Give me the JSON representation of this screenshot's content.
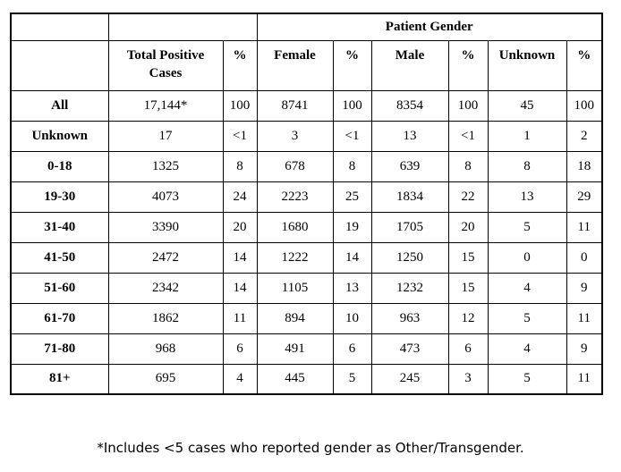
{
  "table": {
    "gender_group_label": "Patient Gender",
    "headers": {
      "row_label": "",
      "total": "Total Positive Cases",
      "total_pct": "%",
      "female": "Female",
      "female_pct": "%",
      "male": "Male",
      "male_pct": "%",
      "unknown": "Unknown",
      "unknown_pct": "%"
    },
    "rows": [
      {
        "label": "All",
        "values": [
          "17,144*",
          "100",
          "8741",
          "100",
          "8354",
          "100",
          "45",
          "100"
        ]
      },
      {
        "label": "Unknown",
        "values": [
          "17",
          "<1",
          "3",
          "<1",
          "13",
          "<1",
          "1",
          "2"
        ]
      },
      {
        "label": "0-18",
        "values": [
          "1325",
          "8",
          "678",
          "8",
          "639",
          "8",
          "8",
          "18"
        ]
      },
      {
        "label": "19-30",
        "values": [
          "4073",
          "24",
          "2223",
          "25",
          "1834",
          "22",
          "13",
          "29"
        ]
      },
      {
        "label": "31-40",
        "values": [
          "3390",
          "20",
          "1680",
          "19",
          "1705",
          "20",
          "5",
          "11"
        ]
      },
      {
        "label": "41-50",
        "values": [
          "2472",
          "14",
          "1222",
          "14",
          "1250",
          "15",
          "0",
          "0"
        ]
      },
      {
        "label": "51-60",
        "values": [
          "2342",
          "14",
          "1105",
          "13",
          "1232",
          "15",
          "4",
          "9"
        ]
      },
      {
        "label": "61-70",
        "values": [
          "1862",
          "11",
          "894",
          "10",
          "963",
          "12",
          "5",
          "11"
        ]
      },
      {
        "label": "71-80",
        "values": [
          "968",
          "6",
          "491",
          "6",
          "473",
          "6",
          "4",
          "9"
        ]
      },
      {
        "label": "81+",
        "values": [
          "695",
          "4",
          "445",
          "5",
          "245",
          "3",
          "5",
          "11"
        ]
      }
    ]
  },
  "footnote": "*Includes <5 cases who reported gender as Other/Transgender.",
  "colors": {
    "border": "#000000",
    "text": "#000000",
    "background": "#ffffff"
  }
}
